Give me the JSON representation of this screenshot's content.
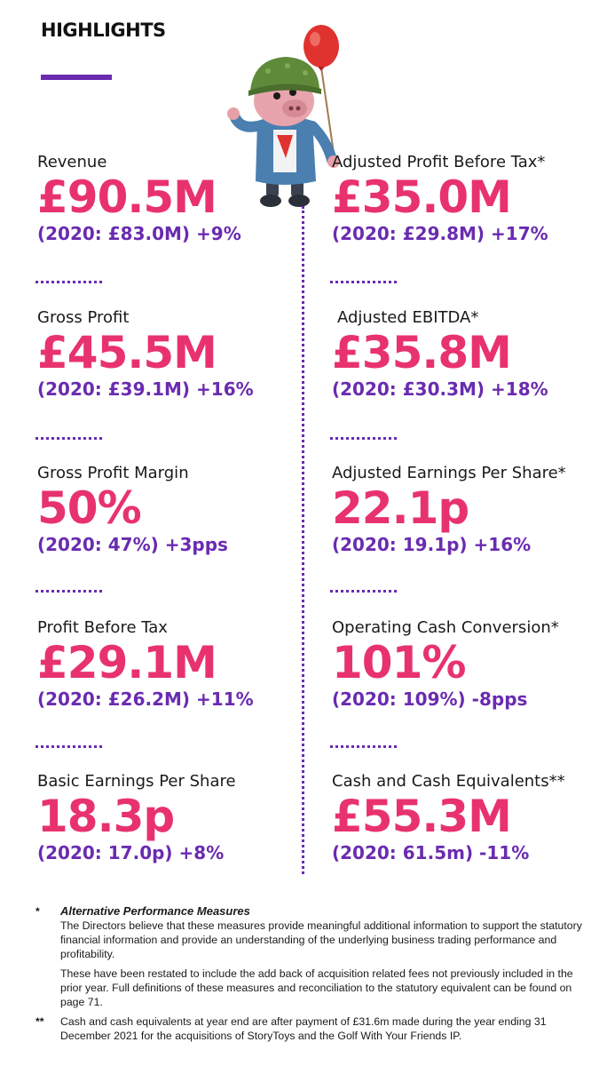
{
  "page": {
    "title": "HIGHLIGHTS"
  },
  "colors": {
    "value": "#e8326e",
    "compare": "#6a2bb0",
    "accent": "#6a2bb0"
  },
  "left_metrics": [
    {
      "label": "Revenue",
      "value": "£90.5M",
      "compare": "(2020: £83.0M) +9%"
    },
    {
      "label": "Gross Profit",
      "value": "£45.5M",
      "compare": "(2020: £39.1M) +16%"
    },
    {
      "label": "Gross Profit Margin",
      "value": "50%",
      "compare": "(2020: 47%) +3pps"
    },
    {
      "label": "Profit Before Tax",
      "value": "£29.1M",
      "compare": "(2020: £26.2M) +11%"
    },
    {
      "label": "Basic Earnings Per Share",
      "value": "18.3p",
      "compare": "(2020: 17.0p) +8%"
    }
  ],
  "right_metrics": [
    {
      "label": "Adjusted Profit Before Tax*",
      "value": "£35.0M",
      "compare": "(2020: £29.8M) +17%"
    },
    {
      "label": "Adjusted EBITDA*",
      "value": "£35.8M",
      "compare": "(2020: £30.3M) +18%"
    },
    {
      "label": "Adjusted Earnings Per Share*",
      "value": "22.1p",
      "compare": "(2020: 19.1p) +16%"
    },
    {
      "label": "Operating Cash Conversion*",
      "value": "101%",
      "compare": "(2020: 109%) -8pps"
    },
    {
      "label": "Cash and Cash Equivalents**",
      "value": "£55.3M",
      "compare": "(2020: 61.5m) -11%"
    }
  ],
  "notes": {
    "note1": {
      "mark": "*",
      "heading": "Alternative Performance Measures",
      "para1": "The Directors believe that these measures provide meaningful additional information to support the statutory financial information and provide an understanding of the underlying business trading performance and profitability.",
      "para2": "These have been restated to include the add back of acquisition related fees not previously included in the prior year. Full definitions of these measures and reconciliation to the statutory equivalent can be found on page 71."
    },
    "note2": {
      "mark": "**",
      "text": "Cash and cash equivalents at year end are after payment of £31.6m made during the year ending 31 December 2021 for the acquisitions of StoryToys and the Golf With Your Friends IP."
    }
  }
}
